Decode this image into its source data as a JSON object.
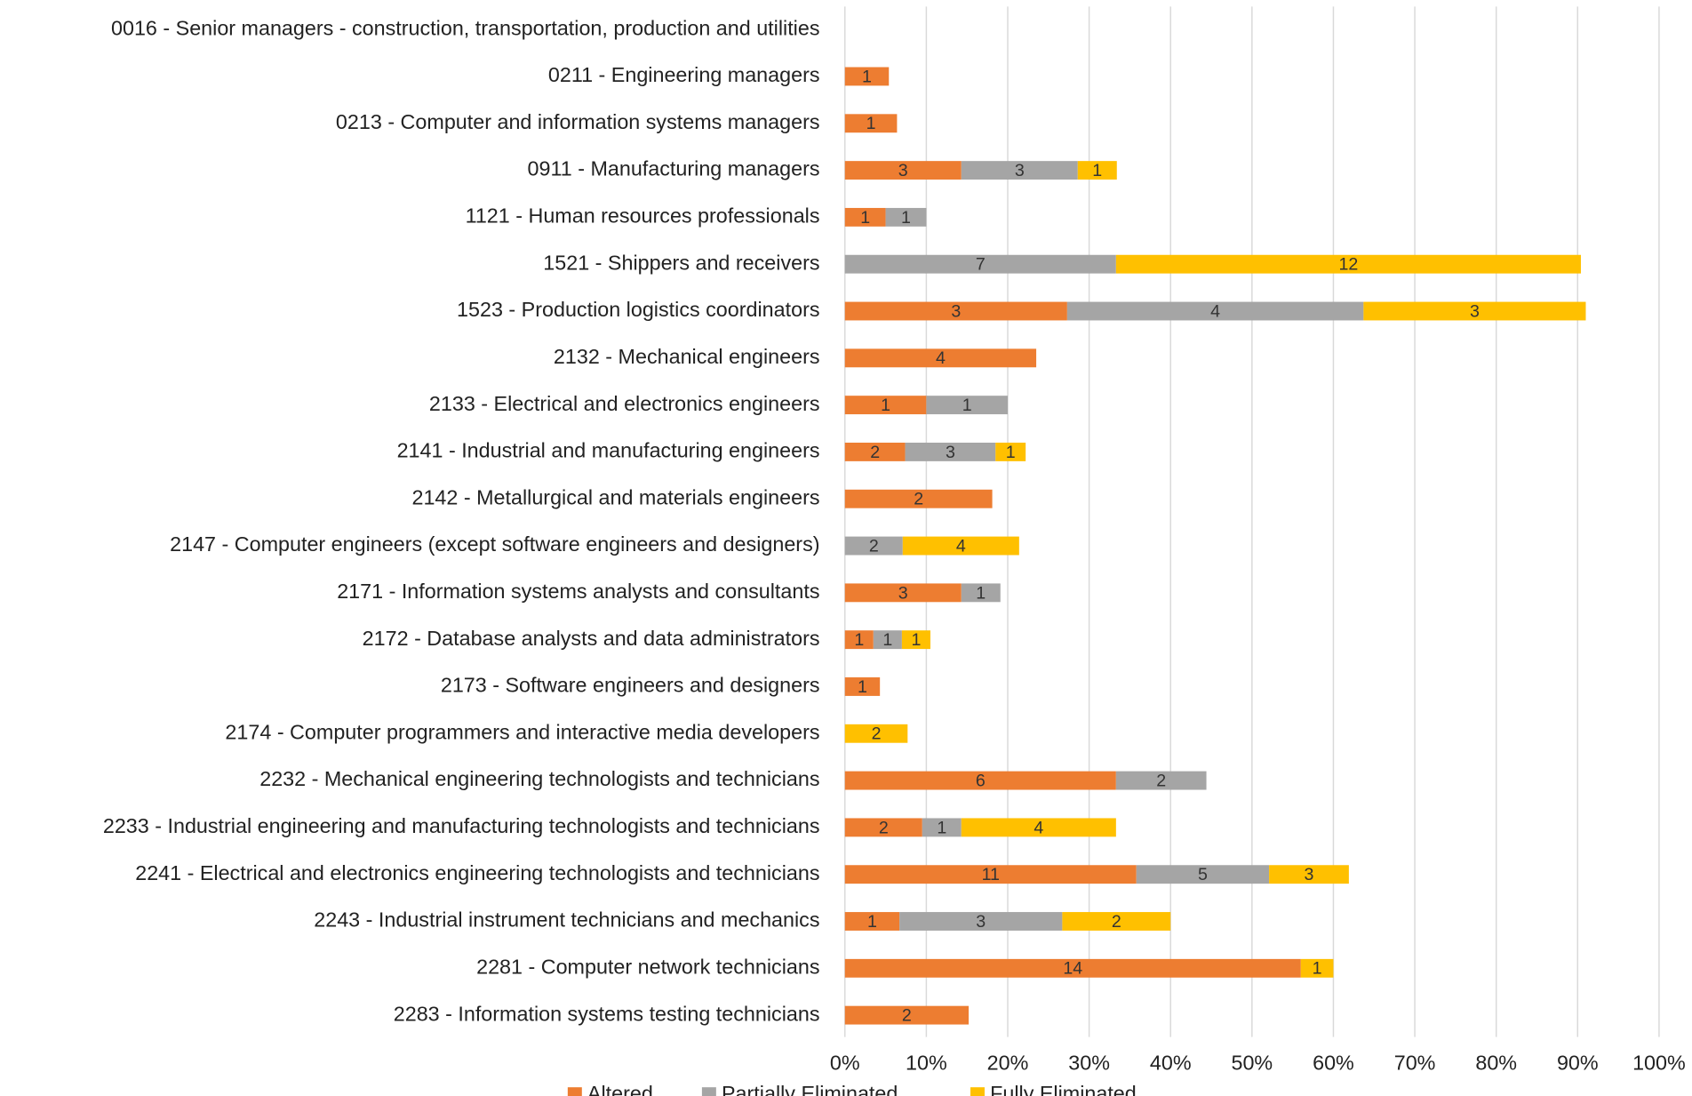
{
  "chart_data": {
    "type": "stacked-bar-horizontal",
    "categories": [
      "0016 - Senior managers - construction, transportation, production and utilities",
      "0211 - Engineering managers",
      "0213 - Computer and information systems managers",
      "0911 - Manufacturing managers",
      "1121 - Human resources professionals",
      "1521 - Shippers and receivers",
      "1523 - Production logistics coordinators",
      "2132 - Mechanical engineers",
      "2133 - Electrical and electronics engineers",
      "2141 - Industrial and manufacturing engineers",
      "2142 - Metallurgical and materials engineers",
      "2147 - Computer engineers (except software engineers and designers)",
      "2171 - Information systems analysts and consultants",
      "2172 - Database analysts and data administrators",
      "2173 - Software engineers and designers",
      "2174 - Computer programmers and interactive media developers",
      "2232 - Mechanical engineering technologists and technicians",
      "2233 - Industrial engineering and manufacturing technologists and technicians",
      "2241 - Electrical and electronics engineering technologists and technicians",
      "2243 - Industrial instrument technicians and mechanics",
      "2281 - Computer network technicians",
      "2283 - Information systems testing technicians"
    ],
    "series": [
      {
        "name": "Altered",
        "color": "#ED7D31",
        "values": [
          null,
          5.4,
          6.4,
          14.3,
          5.0,
          null,
          27.3,
          23.5,
          10.0,
          7.4,
          18.1,
          null,
          14.3,
          3.5,
          4.3,
          null,
          33.3,
          9.5,
          35.8,
          6.7,
          56.0,
          15.2
        ],
        "counts": [
          null,
          1,
          1,
          3,
          1,
          null,
          3,
          4,
          1,
          2,
          2,
          null,
          3,
          1,
          1,
          null,
          6,
          2,
          11,
          1,
          14,
          2
        ]
      },
      {
        "name": "Partially Eliminated",
        "color": "#A5A5A5",
        "values": [
          null,
          null,
          null,
          14.3,
          5.0,
          33.3,
          36.4,
          null,
          10.0,
          11.1,
          null,
          7.1,
          4.8,
          3.5,
          null,
          null,
          11.1,
          4.8,
          16.3,
          20.0,
          null,
          null
        ],
        "counts": [
          null,
          null,
          null,
          3,
          1,
          7,
          4,
          null,
          1,
          3,
          null,
          2,
          1,
          1,
          null,
          null,
          2,
          1,
          5,
          3,
          null,
          null
        ]
      },
      {
        "name": "Fully Eliminated",
        "color": "#FFC000",
        "values": [
          null,
          null,
          null,
          4.8,
          null,
          57.1,
          27.3,
          null,
          null,
          3.7,
          null,
          14.3,
          null,
          3.5,
          null,
          7.7,
          null,
          19.0,
          9.8,
          13.3,
          4.0,
          null
        ],
        "counts": [
          null,
          null,
          null,
          1,
          null,
          12,
          3,
          null,
          null,
          1,
          null,
          4,
          null,
          1,
          null,
          2,
          null,
          4,
          3,
          2,
          1,
          null
        ]
      }
    ],
    "xlim": [
      0,
      100
    ],
    "xticks": [
      {
        "value": 0,
        "label": "0%"
      },
      {
        "value": 10,
        "label": "10%"
      },
      {
        "value": 20,
        "label": "20%"
      },
      {
        "value": 30,
        "label": "30%"
      },
      {
        "value": 40,
        "label": "40%"
      },
      {
        "value": 50,
        "label": "50%"
      },
      {
        "value": 60,
        "label": "60%"
      },
      {
        "value": 70,
        "label": "70%"
      },
      {
        "value": 80,
        "label": "80%"
      },
      {
        "value": 90,
        "label": "90%"
      },
      {
        "value": 100,
        "label": "100%"
      }
    ],
    "grid": true,
    "legend": "bottom"
  }
}
